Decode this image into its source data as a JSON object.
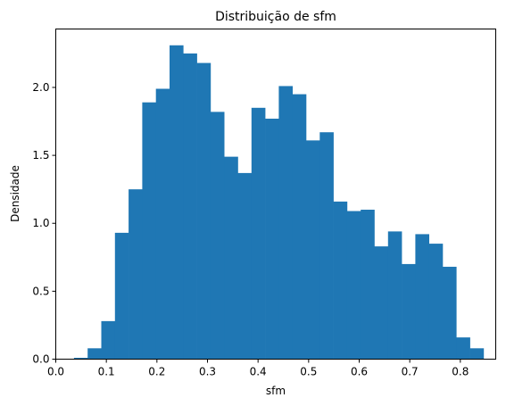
{
  "chart_data": {
    "type": "bar",
    "title": "Distribuição de sfm",
    "xlabel": "sfm",
    "ylabel": "Densidade",
    "xlim": [
      0.0,
      0.87
    ],
    "ylim": [
      0.0,
      2.43
    ],
    "xticks": [
      "0.0",
      "0.1",
      "0.2",
      "0.3",
      "0.4",
      "0.5",
      "0.6",
      "0.7",
      "0.8"
    ],
    "xtick_values": [
      0.0,
      0.1,
      0.2,
      0.3,
      0.4,
      0.5,
      0.6,
      0.7,
      0.8
    ],
    "yticks": [
      "0.0",
      "0.5",
      "1.0",
      "1.5",
      "2.0"
    ],
    "ytick_values": [
      0.0,
      0.5,
      1.0,
      1.5,
      2.0
    ],
    "grid": false,
    "bar_color": "#1f77b4",
    "bins": [
      {
        "x0": 0.036,
        "x1": 0.063,
        "value": 0.01
      },
      {
        "x0": 0.063,
        "x1": 0.09,
        "value": 0.08
      },
      {
        "x0": 0.09,
        "x1": 0.117,
        "value": 0.28
      },
      {
        "x0": 0.117,
        "x1": 0.144,
        "value": 0.93
      },
      {
        "x0": 0.144,
        "x1": 0.171,
        "value": 1.25
      },
      {
        "x0": 0.171,
        "x1": 0.198,
        "value": 1.89
      },
      {
        "x0": 0.198,
        "x1": 0.225,
        "value": 1.99
      },
      {
        "x0": 0.225,
        "x1": 0.252,
        "value": 2.31
      },
      {
        "x0": 0.252,
        "x1": 0.279,
        "value": 2.25
      },
      {
        "x0": 0.279,
        "x1": 0.306,
        "value": 2.18
      },
      {
        "x0": 0.306,
        "x1": 0.333,
        "value": 1.82
      },
      {
        "x0": 0.333,
        "x1": 0.36,
        "value": 1.49
      },
      {
        "x0": 0.36,
        "x1": 0.387,
        "value": 1.37
      },
      {
        "x0": 0.387,
        "x1": 0.414,
        "value": 1.85
      },
      {
        "x0": 0.414,
        "x1": 0.441,
        "value": 1.77
      },
      {
        "x0": 0.441,
        "x1": 0.468,
        "value": 2.01
      },
      {
        "x0": 0.468,
        "x1": 0.495,
        "value": 1.95
      },
      {
        "x0": 0.495,
        "x1": 0.522,
        "value": 1.61
      },
      {
        "x0": 0.522,
        "x1": 0.549,
        "value": 1.67
      },
      {
        "x0": 0.549,
        "x1": 0.576,
        "value": 1.16
      },
      {
        "x0": 0.576,
        "x1": 0.603,
        "value": 1.09
      },
      {
        "x0": 0.603,
        "x1": 0.63,
        "value": 1.1
      },
      {
        "x0": 0.63,
        "x1": 0.657,
        "value": 0.83
      },
      {
        "x0": 0.657,
        "x1": 0.684,
        "value": 0.94
      },
      {
        "x0": 0.684,
        "x1": 0.711,
        "value": 0.7
      },
      {
        "x0": 0.711,
        "x1": 0.738,
        "value": 0.92
      },
      {
        "x0": 0.738,
        "x1": 0.765,
        "value": 0.85
      },
      {
        "x0": 0.765,
        "x1": 0.792,
        "value": 0.68
      },
      {
        "x0": 0.792,
        "x1": 0.819,
        "value": 0.16
      },
      {
        "x0": 0.819,
        "x1": 0.846,
        "value": 0.08
      }
    ]
  }
}
